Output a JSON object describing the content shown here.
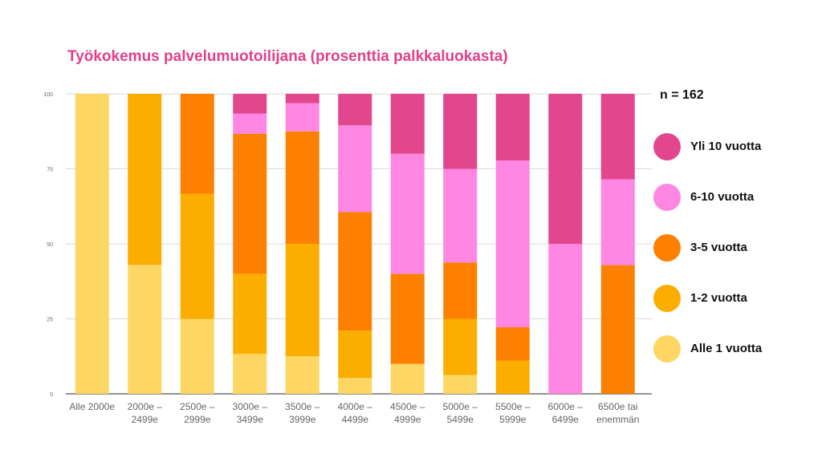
{
  "chart_data": {
    "type": "bar",
    "stacked": true,
    "title": "Työkokemus palvelumuotoilijana (prosenttia palkkaluokasta)",
    "sample_size_label": "n = 162",
    "ylim": [
      0,
      100
    ],
    "yticks": [
      0,
      25,
      50,
      75,
      100
    ],
    "grid": true,
    "legend_position": "right",
    "categories": [
      [
        "Alle 2000e"
      ],
      [
        "2000e –",
        "2499e"
      ],
      [
        "2500e –",
        "2999e"
      ],
      [
        "3000e –",
        "3499e"
      ],
      [
        "3500e –",
        "3999e"
      ],
      [
        "4000e –",
        "4499e"
      ],
      [
        "4500e –",
        "4999e"
      ],
      [
        "5000e –",
        "5499e"
      ],
      [
        "5500e –",
        "5999e"
      ],
      [
        "6000e –",
        "6499e"
      ],
      [
        "6500e tai",
        "enemmän"
      ]
    ],
    "series": [
      {
        "name": "Alle 1 vuotta",
        "color": "#fdd663",
        "values": [
          100,
          43,
          25,
          13.3,
          12.5,
          5.3,
          10,
          6.3,
          0,
          0,
          0
        ]
      },
      {
        "name": "1-2 vuotta",
        "color": "#fbad00",
        "values": [
          0,
          57,
          41.7,
          26.7,
          37.5,
          15.8,
          0,
          18.7,
          11.1,
          0,
          0
        ]
      },
      {
        "name": "3-5 vuotta",
        "color": "#fd8000",
        "values": [
          0,
          0,
          33.3,
          46.7,
          37.5,
          39.5,
          30,
          18.8,
          11.1,
          0,
          42.9
        ]
      },
      {
        "name": "6-10 vuotta",
        "color": "#ff86e2",
        "values": [
          0,
          0,
          0,
          6.7,
          9.4,
          28.9,
          40,
          31.2,
          55.6,
          50,
          28.6
        ]
      },
      {
        "name": "Yli 10 vuotta",
        "color": "#e2478e",
        "values": [
          0,
          0,
          0,
          6.6,
          3.1,
          10.5,
          20,
          25,
          22.2,
          50,
          28.5
        ]
      }
    ]
  },
  "legend_order": [
    "Yli 10 vuotta",
    "6-10 vuotta",
    "3-5 vuotta",
    "1-2 vuotta",
    "Alle 1 vuotta"
  ]
}
